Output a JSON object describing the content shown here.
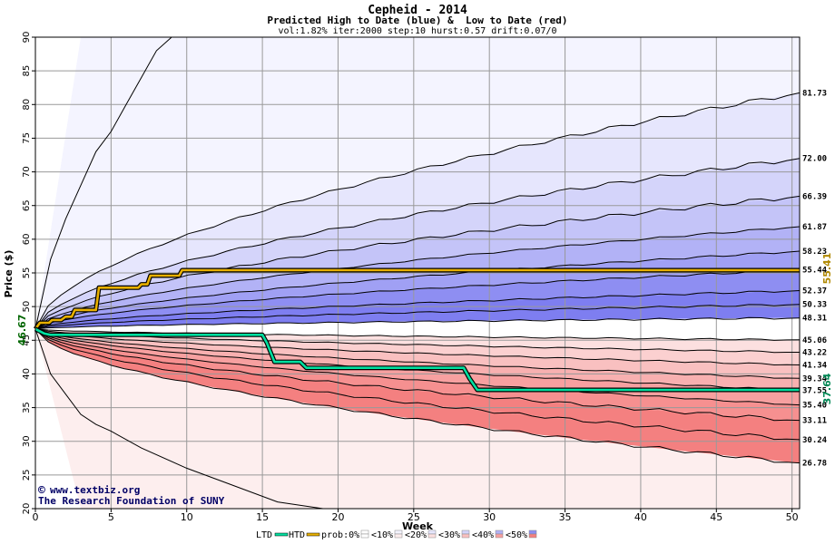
{
  "chart_data": {
    "type": "area",
    "title": "Cepheid - 2014",
    "subtitle": "Predicted High to Date (blue) &  Low to Date (red)",
    "params": "vol:1.82% iter:2000 step:10 hurst:0.57 drift:0.07/0",
    "xlabel": "Week",
    "ylabel": "Price ($)",
    "xlim": [
      0,
      50.5
    ],
    "ylim": [
      20,
      90
    ],
    "xticks": [
      0,
      5,
      10,
      15,
      20,
      25,
      30,
      35,
      40,
      45,
      50
    ],
    "yticks": [
      20,
      25,
      30,
      35,
      40,
      45,
      50,
      55,
      60,
      65,
      70,
      75,
      80,
      85,
      90
    ],
    "grid": true,
    "start_price": 46.67,
    "start_label": "46.67",
    "blue_quantiles": [
      {
        "label": "81.73",
        "end": 81.73
      },
      {
        "label": "72.00",
        "end": 72.0
      },
      {
        "label": "66.39",
        "end": 66.39
      },
      {
        "label": "61.87",
        "end": 61.87
      },
      {
        "label": "58.23",
        "end": 58.23
      },
      {
        "label": "55.44",
        "end": 55.44
      },
      {
        "label": "52.37",
        "end": 52.37
      },
      {
        "label": "50.33",
        "end": 50.33
      },
      {
        "label": "48.31",
        "end": 48.31
      }
    ],
    "red_quantiles": [
      {
        "label": "45.06",
        "end": 45.06
      },
      {
        "label": "43.22",
        "end": 43.22
      },
      {
        "label": "41.34",
        "end": 41.34
      },
      {
        "label": "39.34",
        "end": 39.34
      },
      {
        "label": "37.55",
        "end": 37.55
      },
      {
        "label": "35.40",
        "end": 35.4
      },
      {
        "label": "33.11",
        "end": 33.11
      },
      {
        "label": "30.24",
        "end": 30.24
      },
      {
        "label": "26.78",
        "end": 26.78
      }
    ],
    "outer_blue_curve": {
      "x": [
        0,
        1,
        2,
        3,
        4,
        5,
        6,
        7,
        8,
        9
      ],
      "y": [
        46.67,
        57,
        63,
        68,
        73,
        76,
        80,
        84,
        88,
        90
      ]
    },
    "outer_red_curve": {
      "x": [
        0,
        1,
        2,
        3,
        4,
        5,
        7,
        10,
        13,
        16,
        19
      ],
      "y": [
        46.67,
        40,
        37,
        34,
        32.5,
        31.5,
        29,
        26,
        23.5,
        21,
        20
      ]
    },
    "htd_series": {
      "name": "HTD",
      "x": [
        0,
        0.3,
        0.9,
        1.1,
        1.7,
        2.0,
        2.4,
        2.6,
        4.0,
        4.2,
        6.8,
        7.0,
        7.4,
        7.6,
        9.5,
        9.7,
        50.5
      ],
      "y": [
        46.67,
        47.6,
        47.6,
        48.0,
        48.0,
        48.5,
        48.5,
        49.5,
        49.5,
        52.8,
        52.8,
        53.3,
        53.3,
        54.6,
        54.6,
        55.41,
        55.41
      ]
    },
    "ltd_series": {
      "name": "LTD",
      "x": [
        0,
        0.6,
        1.0,
        15.0,
        15.3,
        15.8,
        17.5,
        17.9,
        20.6,
        28.3,
        28.7,
        29.2,
        50.5
      ],
      "y": [
        46.67,
        46.0,
        45.8,
        45.8,
        44.6,
        41.8,
        41.8,
        40.9,
        40.9,
        40.9,
        39.3,
        37.64,
        37.64
      ]
    },
    "htd_end_label": "55.41",
    "ltd_end_label": "37.64",
    "htd_color": "#e8b000",
    "ltd_color": "#00e0a0",
    "blue_band_colors": [
      "#f4f4ff",
      "#e6e6fd",
      "#d4d4fa",
      "#c4c4f8",
      "#b2b2f6",
      "#a0a0f4",
      "#8e8ef2",
      "#7e7ef0"
    ],
    "red_band_colors": [
      "#fdeeee",
      "#fce0e0",
      "#fbd0d0",
      "#f9c0c0",
      "#f8b0b0",
      "#f7a0a0",
      "#f69090",
      "#f48080"
    ],
    "legend": [
      "LTD",
      "HTD",
      "prob:0%",
      "<10%",
      "<20%",
      "<30%",
      "<40%",
      "<50%"
    ]
  },
  "credit": {
    "line1": "www.textbiz.org",
    "line2": "The Research Foundation of SUNY",
    "copyright_symbol": "©"
  }
}
